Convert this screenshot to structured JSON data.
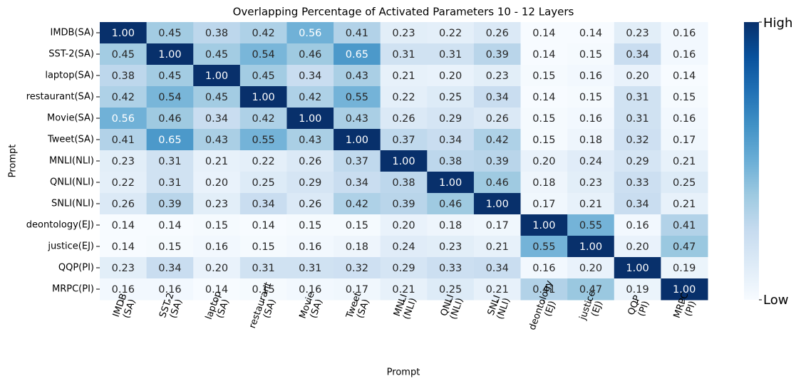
{
  "chart_data": {
    "type": "heatmap",
    "title": "Overlapping Percentage of Activated Parameters 10 - 12 Layers",
    "xlabel": "Prompt",
    "ylabel": "Prompt",
    "y_categories": [
      "IMDB(SA)",
      "SST-2(SA)",
      "laptop(SA)",
      "restaurant(SA)",
      "Movie(SA)",
      "Tweet(SA)",
      "MNLI(NLI)",
      "QNLI(NLI)",
      "SNLI(NLI)",
      "deontology(EJ)",
      "justice(EJ)",
      "QQP(PI)",
      "MRPC(PI)"
    ],
    "x_categories": [
      [
        "IMDB",
        "(SA)"
      ],
      [
        "SST-2",
        "(SA)"
      ],
      [
        "laptop",
        "(SA)"
      ],
      [
        "restaurant",
        "(SA)"
      ],
      [
        "Movie",
        "(SA)"
      ],
      [
        "Tweet",
        "(SA)"
      ],
      [
        "MNLI",
        "(NLI)"
      ],
      [
        "QNLI",
        "(NLI)"
      ],
      [
        "SNLI",
        "(NLI)"
      ],
      [
        "deontology",
        "(EJ)"
      ],
      [
        "justice",
        "(EJ)"
      ],
      [
        "QQP",
        "(PI)"
      ],
      [
        "MRPC",
        "(PI)"
      ]
    ],
    "values": [
      [
        1,
        0.45,
        0.38,
        0.42,
        0.56,
        0.41,
        0.23,
        0.22,
        0.26,
        0.14,
        0.14,
        0.23,
        0.16
      ],
      [
        0.45,
        1,
        0.45,
        0.54,
        0.46,
        0.65,
        0.31,
        0.31,
        0.39,
        0.14,
        0.15,
        0.34,
        0.16
      ],
      [
        0.38,
        0.45,
        1,
        0.45,
        0.34,
        0.43,
        0.21,
        0.2,
        0.23,
        0.15,
        0.16,
        0.2,
        0.14
      ],
      [
        0.42,
        0.54,
        0.45,
        1,
        0.42,
        0.55,
        0.22,
        0.25,
        0.34,
        0.14,
        0.15,
        0.31,
        0.15
      ],
      [
        0.56,
        0.46,
        0.34,
        0.42,
        1,
        0.43,
        0.26,
        0.29,
        0.26,
        0.15,
        0.16,
        0.31,
        0.16
      ],
      [
        0.41,
        0.65,
        0.43,
        0.55,
        0.43,
        1,
        0.37,
        0.34,
        0.42,
        0.15,
        0.18,
        0.32,
        0.17
      ],
      [
        0.23,
        0.31,
        0.21,
        0.22,
        0.26,
        0.37,
        1,
        0.38,
        0.39,
        0.2,
        0.24,
        0.29,
        0.21
      ],
      [
        0.22,
        0.31,
        0.2,
        0.25,
        0.29,
        0.34,
        0.38,
        1,
        0.46,
        0.18,
        0.23,
        0.33,
        0.25
      ],
      [
        0.26,
        0.39,
        0.23,
        0.34,
        0.26,
        0.42,
        0.39,
        0.46,
        1,
        0.17,
        0.21,
        0.34,
        0.21
      ],
      [
        0.14,
        0.14,
        0.15,
        0.14,
        0.15,
        0.15,
        0.2,
        0.18,
        0.17,
        1,
        0.55,
        0.16,
        0.41
      ],
      [
        0.14,
        0.15,
        0.16,
        0.15,
        0.16,
        0.18,
        0.24,
        0.23,
        0.21,
        0.55,
        1,
        0.2,
        0.47
      ],
      [
        0.23,
        0.34,
        0.2,
        0.31,
        0.31,
        0.32,
        0.29,
        0.33,
        0.34,
        0.16,
        0.2,
        1,
        0.19
      ],
      [
        0.16,
        0.16,
        0.14,
        0.15,
        0.16,
        0.17,
        0.21,
        0.25,
        0.21,
        0.41,
        0.47,
        0.19,
        1
      ]
    ],
    "value_labels": [
      [
        "1.00",
        "0.45",
        "0.38",
        "0.42",
        "0.56",
        "0.41",
        "0.23",
        "0.22",
        "0.26",
        "0.14",
        "0.14",
        "0.23",
        "0.16"
      ],
      [
        "0.45",
        "1.00",
        "0.45",
        "0.54",
        "0.46",
        "0.65",
        "0.31",
        "0.31",
        "0.39",
        "0.14",
        "0.15",
        "0.34",
        "0.16"
      ],
      [
        "0.38",
        "0.45",
        "1.00",
        "0.45",
        "0.34",
        "0.43",
        "0.21",
        "0.20",
        "0.23",
        "0.15",
        "0.16",
        "0.20",
        "0.14"
      ],
      [
        "0.42",
        "0.54",
        "0.45",
        "1.00",
        "0.42",
        "0.55",
        "0.22",
        "0.25",
        "0.34",
        "0.14",
        "0.15",
        "0.31",
        "0.15"
      ],
      [
        "0.56",
        "0.46",
        "0.34",
        "0.42",
        "1.00",
        "0.43",
        "0.26",
        "0.29",
        "0.26",
        "0.15",
        "0.16",
        "0.31",
        "0.16"
      ],
      [
        "0.41",
        "0.65",
        "0.43",
        "0.55",
        "0.43",
        "1.00",
        "0.37",
        "0.34",
        "0.42",
        "0.15",
        "0.18",
        "0.32",
        "0.17"
      ],
      [
        "0.23",
        "0.31",
        "0.21",
        "0.22",
        "0.26",
        "0.37",
        "1.00",
        "0.38",
        "0.39",
        "0.20",
        "0.24",
        "0.29",
        "0.21"
      ],
      [
        "0.22",
        "0.31",
        "0.20",
        "0.25",
        "0.29",
        "0.34",
        "0.38",
        "1.00",
        "0.46",
        "0.18",
        "0.23",
        "0.33",
        "0.25"
      ],
      [
        "0.26",
        "0.39",
        "0.23",
        "0.34",
        "0.26",
        "0.42",
        "0.39",
        "0.46",
        "1.00",
        "0.17",
        "0.21",
        "0.34",
        "0.21"
      ],
      [
        "0.14",
        "0.14",
        "0.15",
        "0.14",
        "0.15",
        "0.15",
        "0.20",
        "0.18",
        "0.17",
        "1.00",
        "0.55",
        "0.16",
        "0.41"
      ],
      [
        "0.14",
        "0.15",
        "0.16",
        "0.15",
        "0.16",
        "0.18",
        "0.24",
        "0.23",
        "0.21",
        "0.55",
        "1.00",
        "0.20",
        "0.47"
      ],
      [
        "0.23",
        "0.34",
        "0.20",
        "0.31",
        "0.31",
        "0.32",
        "0.29",
        "0.33",
        "0.34",
        "0.16",
        "0.20",
        "1.00",
        "0.19"
      ],
      [
        "0.16",
        "0.16",
        "0.14",
        "0.15",
        "0.16",
        "0.17",
        "0.21",
        "0.25",
        "0.21",
        "0.41",
        "0.47",
        "0.19",
        "1.00"
      ]
    ],
    "zlim": [
      0.14,
      1
    ],
    "colormap": [
      "#f7fbff",
      "#deebf7",
      "#c6dbef",
      "#9ecae1",
      "#6baed6",
      "#4292c6",
      "#2171b5",
      "#08519c",
      "#08306b"
    ],
    "colorbar": {
      "high_label": "High",
      "low_label": "Low"
    }
  }
}
